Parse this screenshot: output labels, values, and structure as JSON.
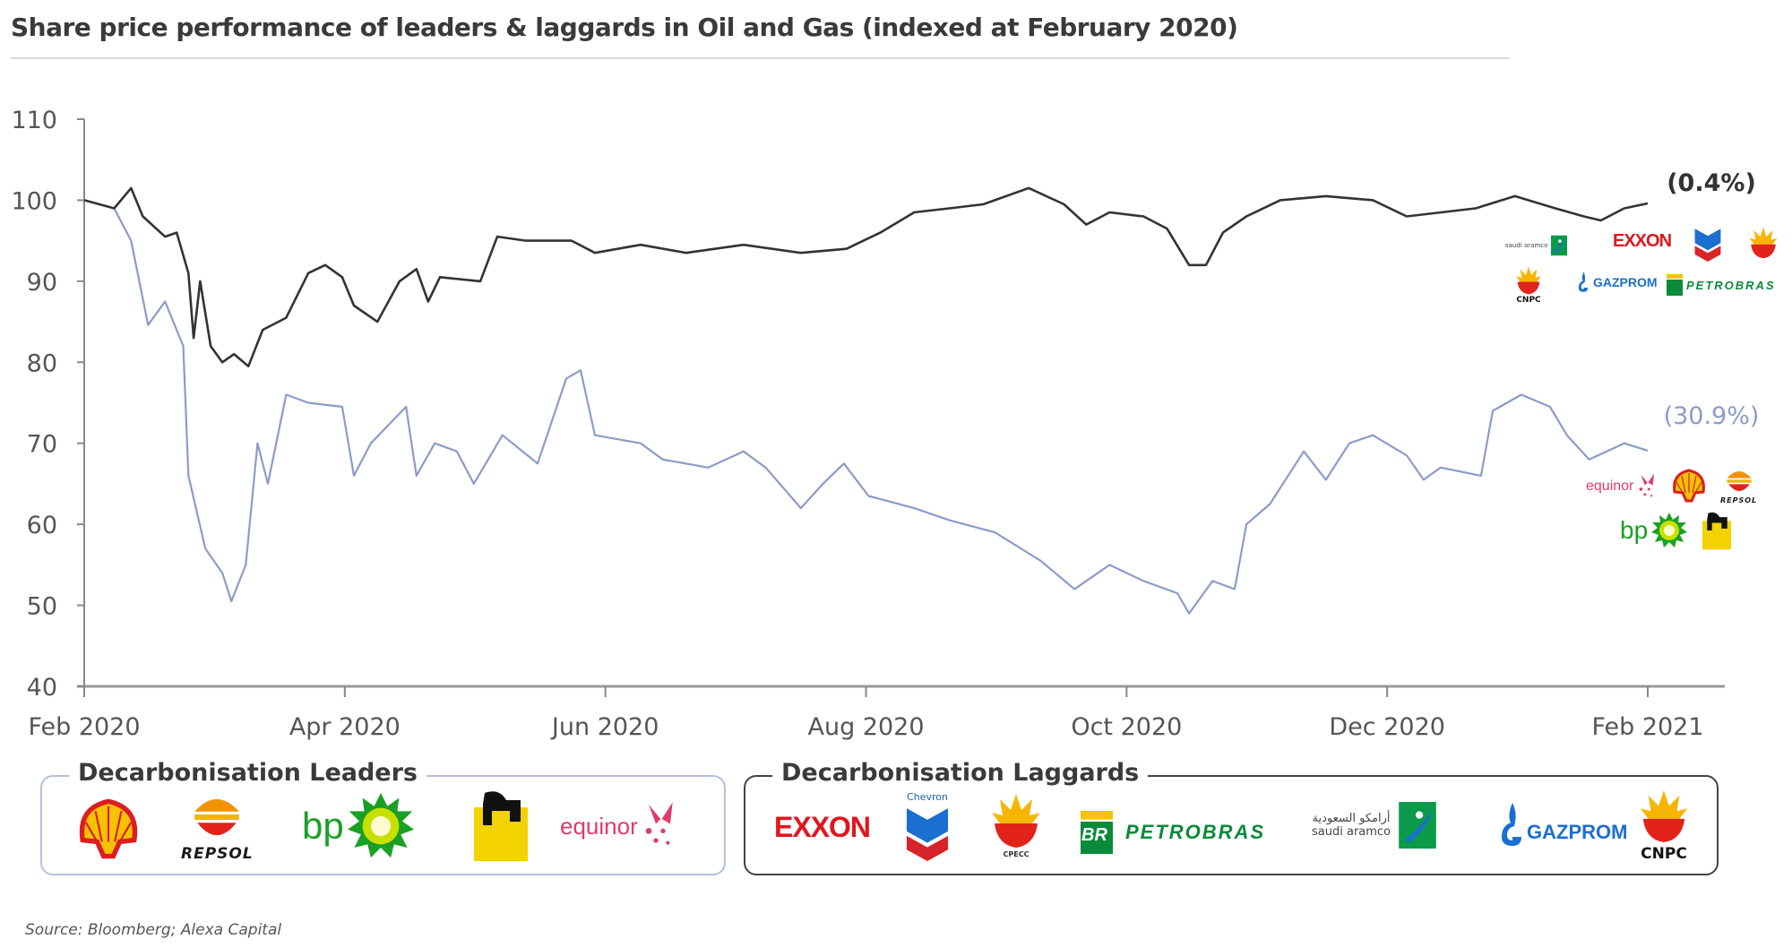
{
  "chart_data": {
    "type": "line",
    "title": "Share price performance of leaders & laggards in Oil and Gas (indexed at February 2020)",
    "xlabel": "",
    "ylabel": "",
    "x_unit": "months since Feb 2020",
    "xlim": [
      0,
      12
    ],
    "ylim": [
      40,
      110
    ],
    "yticks": [
      "40",
      "50",
      "60",
      "70",
      "80",
      "90",
      "100",
      "110"
    ],
    "ytick_values": [
      40,
      50,
      60,
      70,
      80,
      90,
      100,
      110
    ],
    "xticks": [
      "Feb 2020",
      "Apr 2020",
      "Jun 2020",
      "Aug 2020",
      "Oct 2020",
      "Dec 2020",
      "Feb 2021"
    ],
    "xtick_values": [
      0,
      2,
      4,
      6,
      8,
      10,
      12
    ],
    "grid": false,
    "legend": "bottom (logo boxes)",
    "series": [
      {
        "name": "Decarbonisation Laggards",
        "color": "#333333",
        "end_label": "(0.4%)",
        "x": [
          0,
          0.23,
          0.36,
          0.45,
          0.62,
          0.71,
          0.8,
          0.84,
          0.89,
          0.97,
          1.06,
          1.15,
          1.26,
          1.37,
          1.55,
          1.72,
          1.85,
          1.98,
          2.07,
          2.25,
          2.42,
          2.55,
          2.64,
          2.73,
          3.04,
          3.17,
          3.39,
          3.74,
          3.92,
          4.27,
          4.62,
          5.06,
          5.5,
          5.85,
          6.11,
          6.37,
          6.64,
          6.9,
          7.25,
          7.52,
          7.69,
          7.87,
          8.13,
          8.31,
          8.48,
          8.61,
          8.74,
          8.92,
          9.18,
          9.53,
          9.89,
          10.15,
          10.68,
          10.98,
          11.29,
          11.51,
          11.64,
          11.82,
          12
        ],
        "y": [
          100,
          99,
          101.5,
          98,
          95.5,
          96,
          91,
          83,
          90,
          82,
          80,
          81,
          79.5,
          84,
          85.5,
          91,
          92,
          90.5,
          87,
          85,
          90,
          91.5,
          87.5,
          90.5,
          90,
          95.5,
          95,
          95,
          93.5,
          94.5,
          93.5,
          94.5,
          93.5,
          94,
          96,
          98.5,
          99,
          99.5,
          101.5,
          99.5,
          97,
          98.5,
          98,
          96.5,
          92,
          92,
          96,
          98,
          100,
          100.5,
          100,
          98,
          99,
          100.5,
          99,
          98,
          97.5,
          99,
          99.6
        ]
      },
      {
        "name": "Decarbonisation Leaders",
        "color": "#8c9bc9",
        "end_label": "(30.9%)",
        "x": [
          0,
          0.23,
          0.36,
          0.49,
          0.62,
          0.76,
          0.8,
          0.93,
          1.06,
          1.13,
          1.24,
          1.33,
          1.41,
          1.55,
          1.72,
          1.98,
          2.07,
          2.2,
          2.47,
          2.55,
          2.69,
          2.86,
          2.99,
          3.21,
          3.48,
          3.7,
          3.81,
          3.92,
          4.27,
          4.44,
          4.79,
          5.06,
          5.23,
          5.5,
          5.67,
          5.83,
          6.02,
          6.37,
          6.64,
          6.99,
          7.34,
          7.6,
          7.87,
          8.13,
          8.39,
          8.48,
          8.66,
          8.83,
          8.92,
          9.1,
          9.36,
          9.53,
          9.71,
          9.89,
          10.15,
          10.28,
          10.41,
          10.72,
          10.81,
          11.03,
          11.25,
          11.38,
          11.55,
          11.82,
          12
        ],
        "y": [
          100,
          99,
          95,
          84.6,
          87.5,
          82,
          66,
          57,
          54,
          50.5,
          55,
          70,
          65,
          76,
          75,
          74.5,
          66,
          70,
          74.5,
          66,
          70,
          69,
          65,
          71,
          67.5,
          78,
          79,
          71,
          70,
          68,
          67,
          69,
          67,
          62,
          65,
          67.5,
          63.5,
          62,
          60.5,
          59,
          55.5,
          52,
          55,
          53,
          51.5,
          49,
          53,
          52,
          60,
          62.5,
          69,
          65.5,
          70,
          71,
          68.5,
          65.5,
          67,
          66,
          74,
          76,
          74.5,
          71,
          68,
          70,
          69.1
        ]
      }
    ]
  },
  "legend": {
    "leaders_title": "Decarbonisation Leaders",
    "laggards_title": "Decarbonisation Laggards"
  },
  "logos": {
    "repsol": "REPSOL",
    "bp": "bp",
    "eni": "eni",
    "equinor": "equinor",
    "exxon": "EXXON",
    "chevron": "Chevron",
    "cpecc": "CPECC",
    "petrobras": "PETROBRAS",
    "br": "BR",
    "aramco": "saudi aramco",
    "aramco_ar": "أرامكو السعودية",
    "gazprom": "GAZPROM",
    "cnpc": "CNPC"
  },
  "colors": {
    "leaders": "#8c9bc9",
    "laggards": "#333333",
    "axis": "#888888"
  },
  "source": "Source: Bloomberg; Alexa Capital"
}
